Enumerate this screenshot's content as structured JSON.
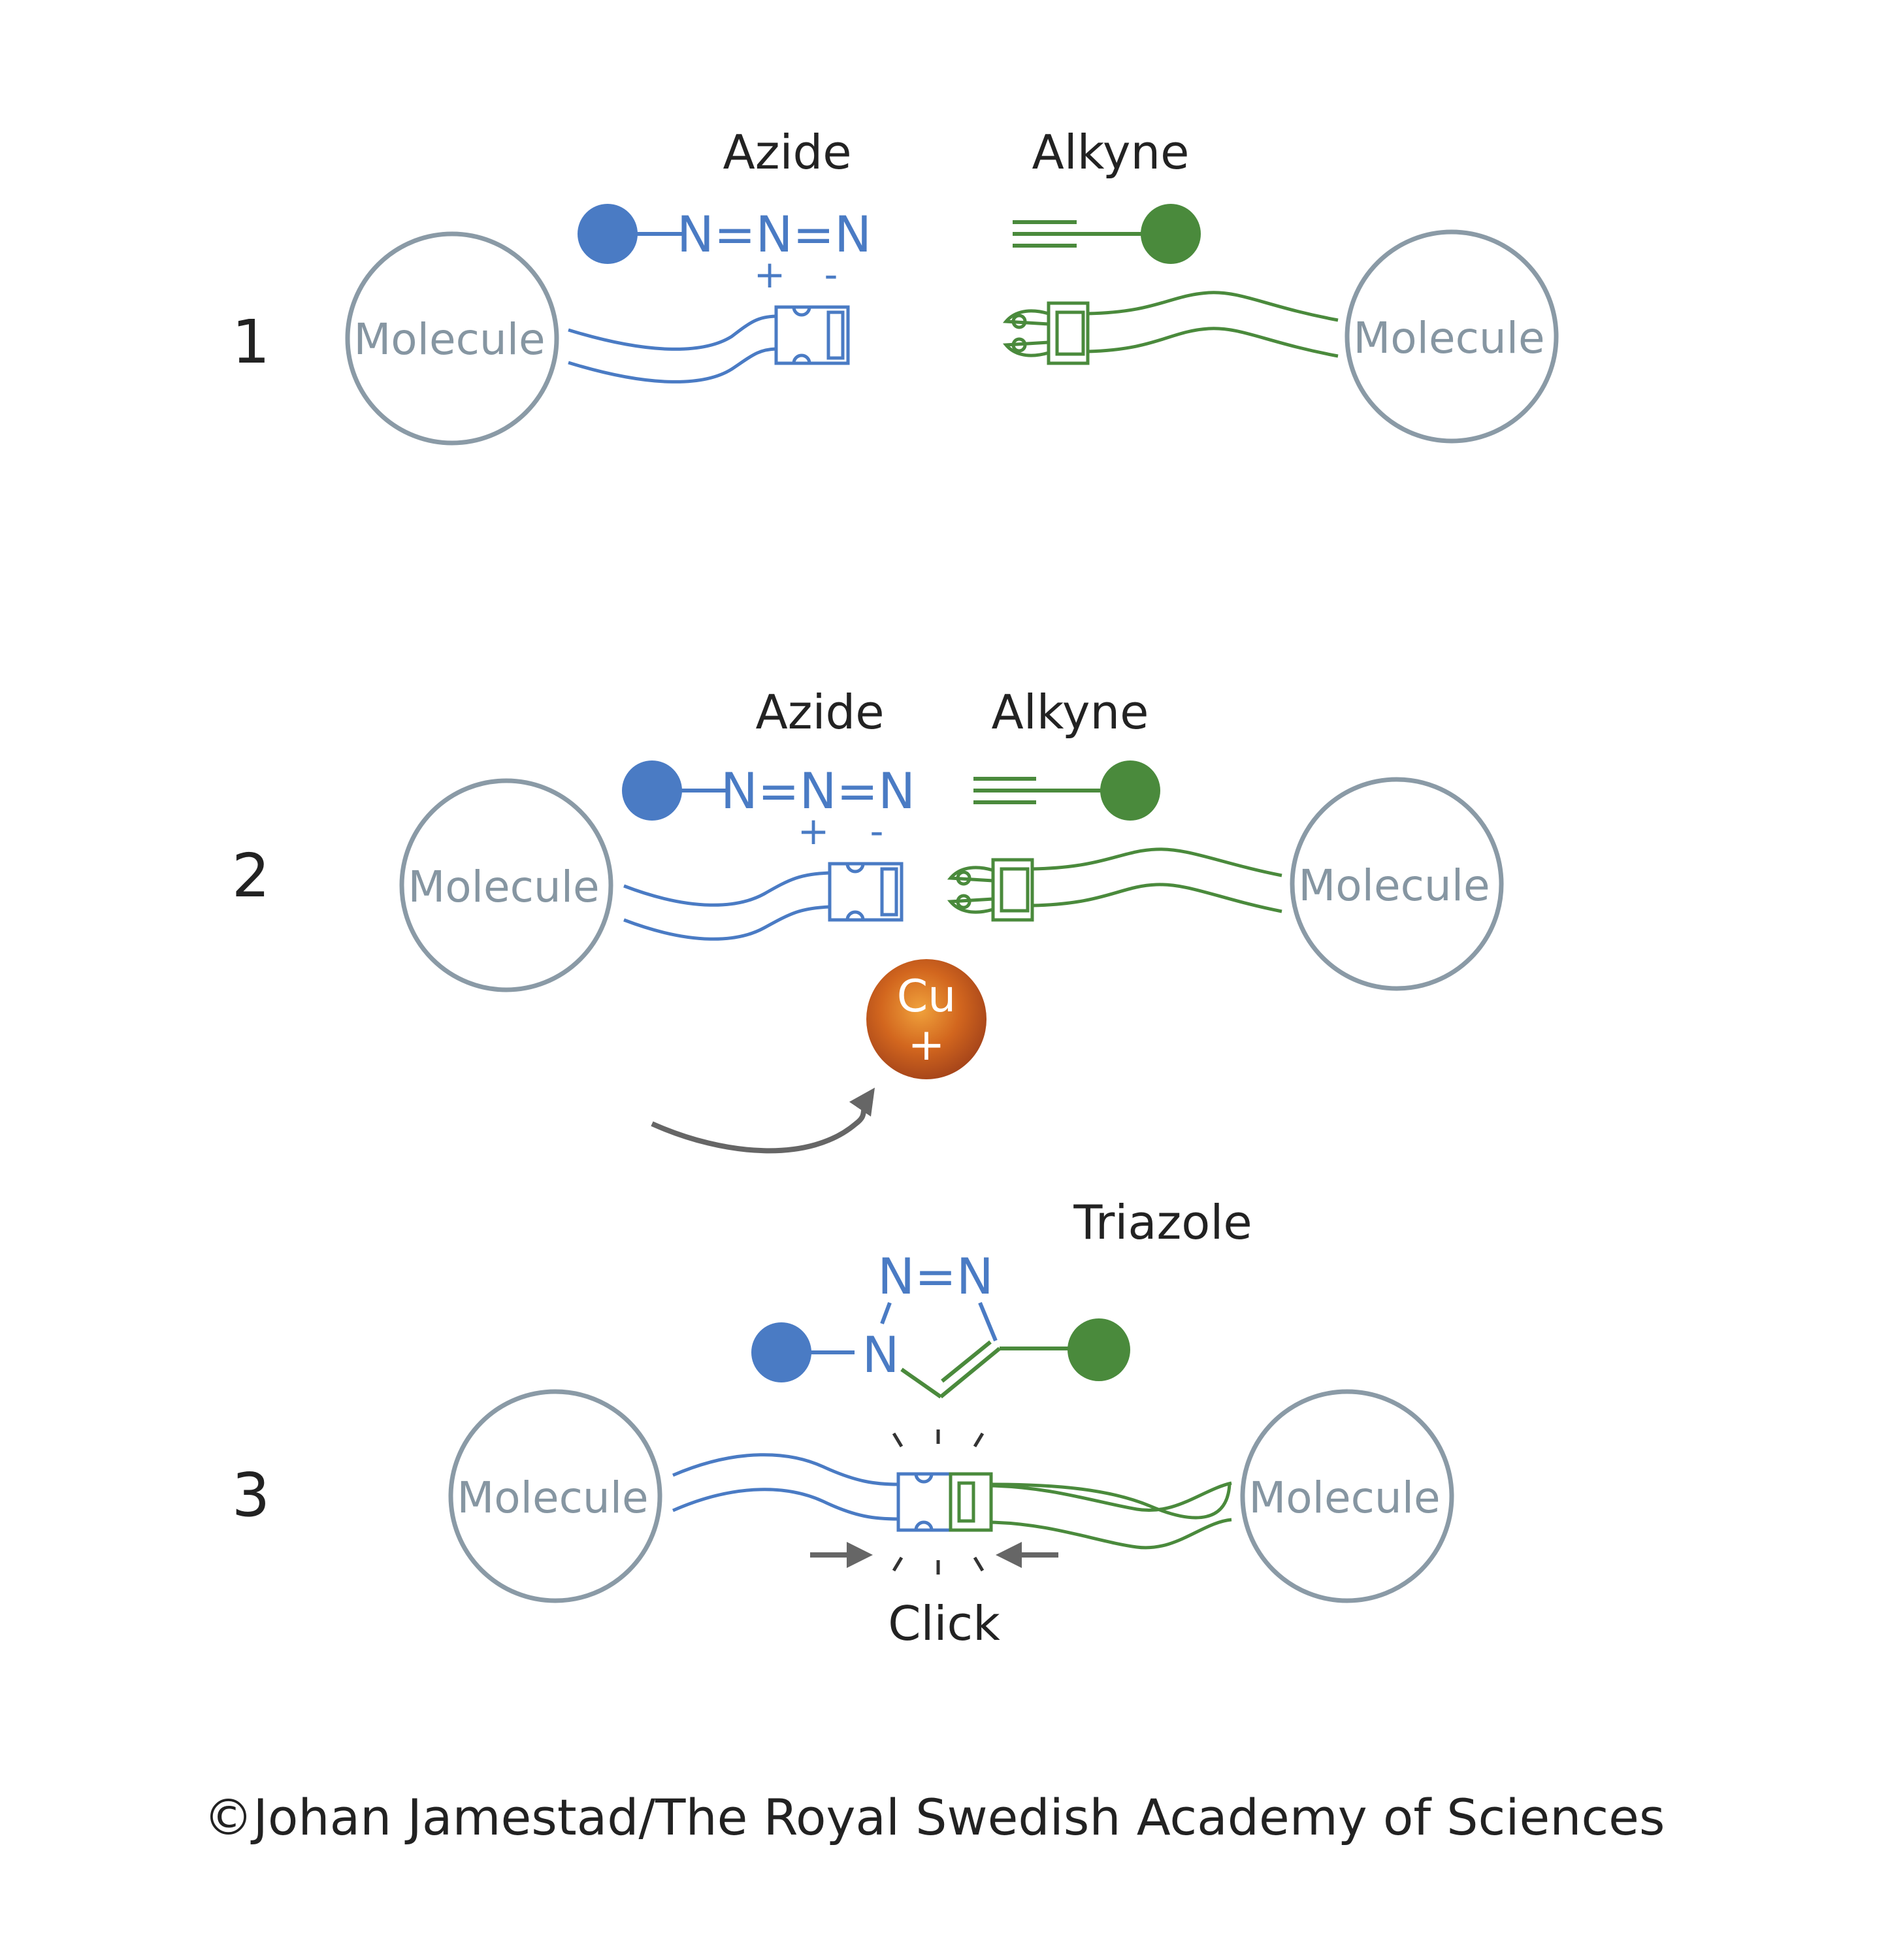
{
  "colors": {
    "azide": "#4a7bc4",
    "alkyne": "#4a8a3c",
    "molecule": "#8a9aa6",
    "copper": "#d2661e",
    "arrow": "#666666"
  },
  "step1": {
    "number": "1",
    "azide_label": "Azide",
    "alkyne_label": "Alkyne",
    "azide_formula": "N=N=N",
    "plus": "+",
    "minus": "-",
    "molecule_left": "Molecule",
    "molecule_right": "Molecule"
  },
  "step2": {
    "number": "2",
    "azide_label": "Azide",
    "alkyne_label": "Alkyne",
    "azide_formula": "N=N=N",
    "plus": "+",
    "minus": "-",
    "molecule_left": "Molecule",
    "molecule_right": "Molecule",
    "catalyst_symbol": "Cu",
    "catalyst_charge": "+"
  },
  "step3": {
    "number": "3",
    "triazole_label": "Triazole",
    "ring_n_top": "N=N",
    "ring_n_left": "N",
    "molecule_left": "Molecule",
    "molecule_right": "Molecule",
    "click_label": "Click"
  },
  "credit": "©Johan Jamestad/The Royal Swedish Academy of Sciences"
}
